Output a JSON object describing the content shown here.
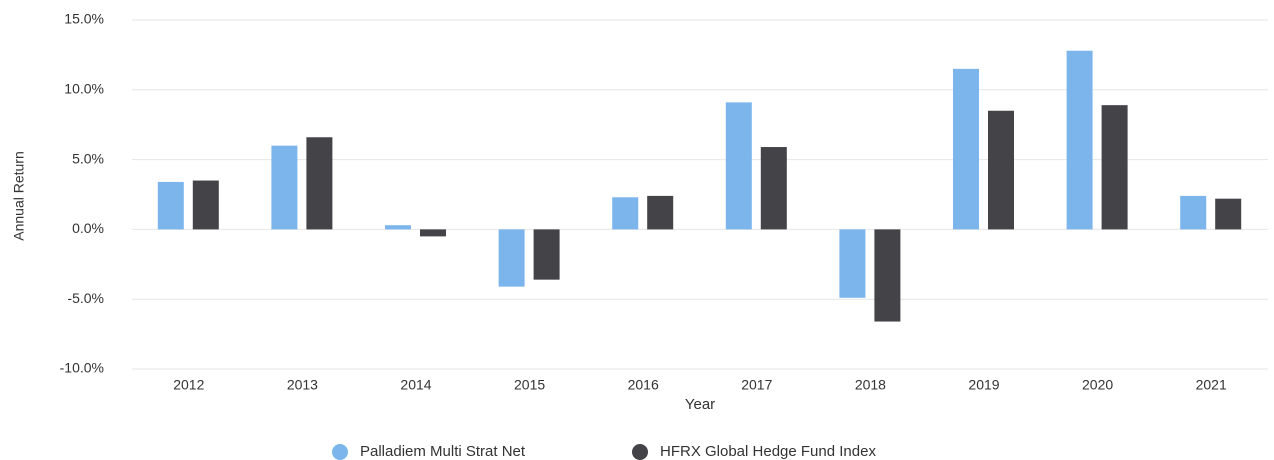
{
  "chart_data": {
    "type": "bar",
    "x_label": "Year",
    "y_label": "Annual Return",
    "categories": [
      "2012",
      "2013",
      "2014",
      "2015",
      "2016",
      "2017",
      "2018",
      "2019",
      "2020",
      "2021"
    ],
    "series": [
      {
        "name": "Palladiem Multi Strat Net",
        "color": "#7cb5ec",
        "values": [
          3.4,
          6.0,
          0.3,
          -4.1,
          2.3,
          9.1,
          -4.9,
          11.5,
          12.8,
          2.4
        ]
      },
      {
        "name": "HFRX Global Hedge Fund Index",
        "color": "#434348",
        "values": [
          3.5,
          6.6,
          -0.5,
          -3.6,
          2.4,
          5.9,
          -6.6,
          8.5,
          8.9,
          2.2
        ]
      }
    ],
    "ylim": [
      -10,
      15
    ],
    "yticks": [
      {
        "value": -10,
        "label": "-10.0%"
      },
      {
        "value": -5,
        "label": "-5.0%"
      },
      {
        "value": 0,
        "label": "0.0%"
      },
      {
        "value": 5,
        "label": "5.0%"
      },
      {
        "value": 10,
        "label": "10.0%"
      },
      {
        "value": 15,
        "label": "15.0%"
      }
    ],
    "grid": true,
    "legend": "bottom"
  }
}
